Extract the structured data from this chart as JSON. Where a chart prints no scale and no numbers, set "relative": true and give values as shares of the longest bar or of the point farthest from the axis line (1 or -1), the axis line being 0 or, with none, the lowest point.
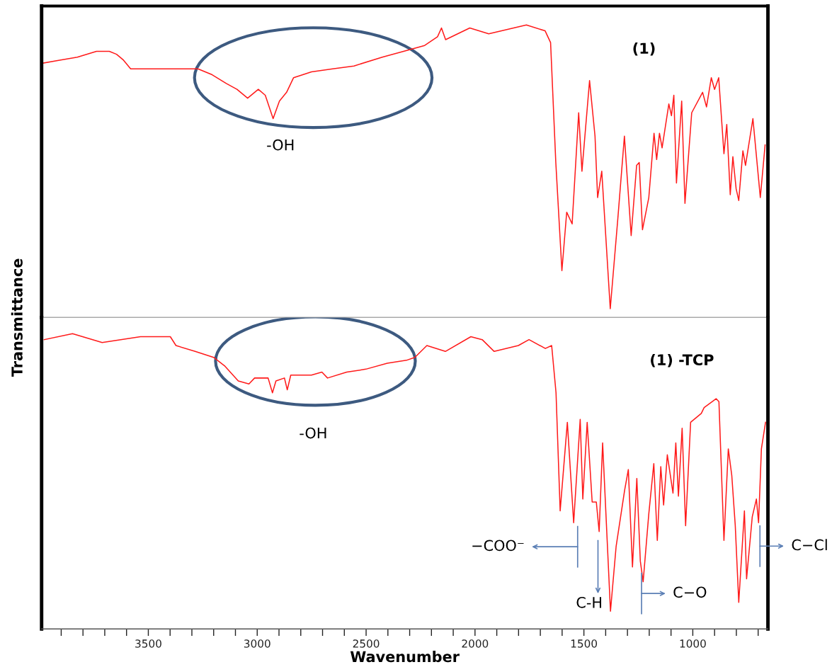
{
  "chart_data": [
    {
      "type": "line",
      "relative": true,
      "ylabel": "Transmittance",
      "xlim": [
        3990,
        655
      ],
      "tick_labels": false,
      "grid": false,
      "legend": false,
      "marker": "none",
      "line_style": "solid",
      "x": [
        3982,
        3907,
        3826,
        3738,
        3679,
        3646,
        3614,
        3581,
        3533,
        3435,
        3337,
        3272,
        3207,
        3142,
        3093,
        3044,
        2995,
        2963,
        2927,
        2898,
        2865,
        2833,
        2751,
        2654,
        2556,
        2426,
        2328,
        2231,
        2172,
        2154,
        2135,
        2024,
        1937,
        1764,
        1678,
        1653,
        1629,
        1601,
        1579,
        1554,
        1524,
        1509,
        1474,
        1449,
        1437,
        1418,
        1379,
        1344,
        1314,
        1283,
        1258,
        1246,
        1231,
        1202,
        1178,
        1166,
        1153,
        1141,
        1110,
        1098,
        1087,
        1075,
        1051,
        1036,
        1005,
        955,
        937,
        915,
        900,
        881,
        857,
        844,
        828,
        816,
        801,
        789,
        770,
        758,
        724,
        690,
        668
      ],
      "series": [
        {
          "color": "#ff1a1a",
          "values": [
            0.87,
            0.88,
            0.89,
            0.91,
            0.91,
            0.9,
            0.88,
            0.85,
            0.85,
            0.85,
            0.85,
            0.85,
            0.83,
            0.8,
            0.78,
            0.75,
            0.78,
            0.76,
            0.68,
            0.74,
            0.77,
            0.82,
            0.84,
            0.85,
            0.86,
            0.89,
            0.91,
            0.93,
            0.96,
            0.99,
            0.95,
            0.99,
            0.97,
            1.0,
            0.98,
            0.94,
            0.53,
            0.16,
            0.36,
            0.32,
            0.7,
            0.5,
            0.81,
            0.62,
            0.41,
            0.5,
            0.03,
            0.34,
            0.62,
            0.28,
            0.52,
            0.53,
            0.3,
            0.41,
            0.63,
            0.54,
            0.63,
            0.58,
            0.73,
            0.69,
            0.76,
            0.46,
            0.74,
            0.39,
            0.7,
            0.77,
            0.72,
            0.82,
            0.78,
            0.82,
            0.56,
            0.66,
            0.42,
            0.55,
            0.44,
            0.4,
            0.57,
            0.52,
            0.68,
            0.41,
            0.59
          ]
        }
      ],
      "annotations": [
        "(1)",
        "-OH"
      ]
    },
    {
      "type": "line",
      "relative": true,
      "xlabel": "Wavenumber",
      "xlim": [
        3990,
        655
      ],
      "tick_labels": "x",
      "grid": false,
      "legend": false,
      "marker": "none",
      "line_style": "solid",
      "xticks": [
        {
          "value": 3900,
          "label": null
        },
        {
          "value": 3800,
          "label": null
        },
        {
          "value": 3700,
          "label": null
        },
        {
          "value": 3600,
          "label": null
        },
        3500,
        {
          "value": 3400,
          "label": null
        },
        {
          "value": 3300,
          "label": null
        },
        {
          "value": 3200,
          "label": null
        },
        {
          "value": 3100,
          "label": null
        },
        3000,
        {
          "value": 2900,
          "label": null
        },
        {
          "value": 2800,
          "label": null
        },
        {
          "value": 2700,
          "label": null
        },
        {
          "value": 2600,
          "label": null
        },
        2500,
        {
          "value": 2400,
          "label": null
        },
        {
          "value": 2300,
          "label": null
        },
        {
          "value": 2200,
          "label": null
        },
        {
          "value": 2100,
          "label": null
        },
        2000,
        {
          "value": 1900,
          "label": null
        },
        {
          "value": 1800,
          "label": null
        },
        {
          "value": 1700,
          "label": null
        },
        {
          "value": 1600,
          "label": null
        },
        1500,
        {
          "value": 1400,
          "label": null
        },
        {
          "value": 1300,
          "label": null
        },
        {
          "value": 1200,
          "label": null
        },
        {
          "value": 1100,
          "label": null
        },
        1000,
        {
          "value": 900,
          "label": null
        },
        {
          "value": 800,
          "label": null
        },
        {
          "value": 700,
          "label": null
        }
      ],
      "x": [
        3978,
        3848,
        3712,
        3536,
        3399,
        3373,
        3285,
        3200,
        3148,
        3087,
        3038,
        3012,
        2950,
        2930,
        2914,
        2875,
        2862,
        2846,
        2751,
        2703,
        2677,
        2589,
        2501,
        2403,
        2315,
        2276,
        2221,
        2136,
        2019,
        1967,
        1912,
        1801,
        1752,
        1677,
        1648,
        1628,
        1609,
        1576,
        1547,
        1517,
        1505,
        1485,
        1462,
        1443,
        1430,
        1414,
        1378,
        1352,
        1313,
        1296,
        1277,
        1257,
        1241,
        1228,
        1202,
        1179,
        1163,
        1147,
        1134,
        1117,
        1091,
        1078,
        1066,
        1049,
        1033,
        1010,
        961,
        948,
        893,
        880,
        857,
        837,
        821,
        805,
        789,
        763,
        753,
        727,
        708,
        698,
        685,
        666
      ],
      "series": [
        {
          "color": "#ff1a1a",
          "values": [
            0.98,
            1.0,
            0.97,
            0.99,
            0.99,
            0.96,
            0.94,
            0.92,
            0.89,
            0.84,
            0.83,
            0.85,
            0.85,
            0.8,
            0.84,
            0.85,
            0.81,
            0.86,
            0.86,
            0.87,
            0.85,
            0.87,
            0.88,
            0.9,
            0.91,
            0.92,
            0.96,
            0.94,
            0.99,
            0.98,
            0.94,
            0.96,
            0.98,
            0.95,
            0.96,
            0.8,
            0.4,
            0.7,
            0.36,
            0.71,
            0.44,
            0.7,
            0.43,
            0.43,
            0.33,
            0.63,
            0.06,
            0.28,
            0.47,
            0.54,
            0.21,
            0.51,
            0.23,
            0.16,
            0.39,
            0.56,
            0.3,
            0.55,
            0.42,
            0.59,
            0.46,
            0.63,
            0.45,
            0.68,
            0.35,
            0.7,
            0.73,
            0.75,
            0.78,
            0.77,
            0.3,
            0.61,
            0.52,
            0.35,
            0.09,
            0.4,
            0.17,
            0.38,
            0.44,
            0.36,
            0.61,
            0.7
          ]
        }
      ],
      "annotations": [
        "(1) -TCP",
        "-OH",
        "−COO⁻",
        "C-H",
        "C−O",
        "C−Cl"
      ]
    }
  ]
}
